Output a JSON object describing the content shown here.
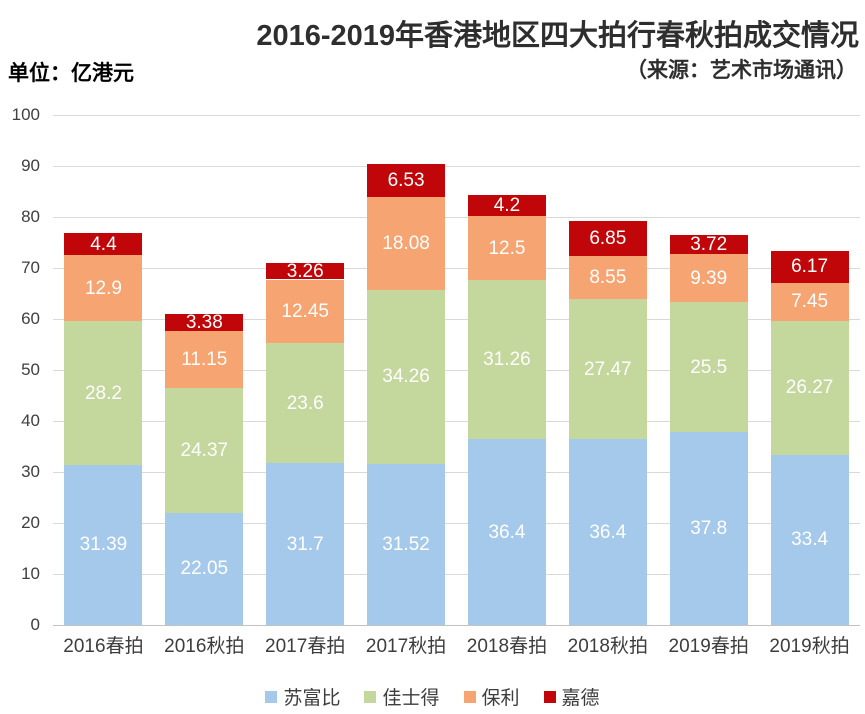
{
  "header": {
    "title": "2016-2019年香港地区四大拍行春秋拍成交情况",
    "source": "（来源：艺术市场通讯）",
    "unit_label": "单位：亿港元"
  },
  "chart_data": {
    "type": "bar",
    "stacked": true,
    "title": "2016-2019年香港地区四大拍行春秋拍成交情况",
    "subtitle": "（来源：艺术市场通讯）",
    "unit": "亿港元",
    "xlabel": "",
    "ylabel": "亿港元",
    "ylim": [
      0,
      100
    ],
    "yticks": [
      0,
      10,
      20,
      30,
      40,
      50,
      60,
      70,
      80,
      90,
      100
    ],
    "grid": true,
    "legend_position": "bottom",
    "categories": [
      "2016春拍",
      "2016秋拍",
      "2017春拍",
      "2017秋拍",
      "2018春拍",
      "2018秋拍",
      "2019春拍",
      "2019秋拍"
    ],
    "series": [
      {
        "name": "苏富比",
        "color": "#a5c9ea",
        "values": [
          31.39,
          22.05,
          31.7,
          31.52,
          36.4,
          36.4,
          37.8,
          33.4
        ]
      },
      {
        "name": "佳士得",
        "color": "#c4d79d",
        "values": [
          28.2,
          24.37,
          23.6,
          34.26,
          31.26,
          27.47,
          25.5,
          26.27
        ]
      },
      {
        "name": "保利",
        "color": "#f5a472",
        "values": [
          12.9,
          11.15,
          12.45,
          18.08,
          12.5,
          8.55,
          9.39,
          7.45
        ]
      },
      {
        "name": "嘉德",
        "color": "#c00609",
        "values": [
          4.4,
          3.38,
          3.26,
          6.53,
          4.2,
          6.85,
          3.72,
          6.17
        ]
      }
    ]
  },
  "colors": {
    "background": "#ffffff",
    "grid": "#d9d9d9",
    "baseline": "#c2c2c2",
    "axis_text": "#404040",
    "title_text": "#2e2e2e",
    "value_text": "#ffffff"
  }
}
